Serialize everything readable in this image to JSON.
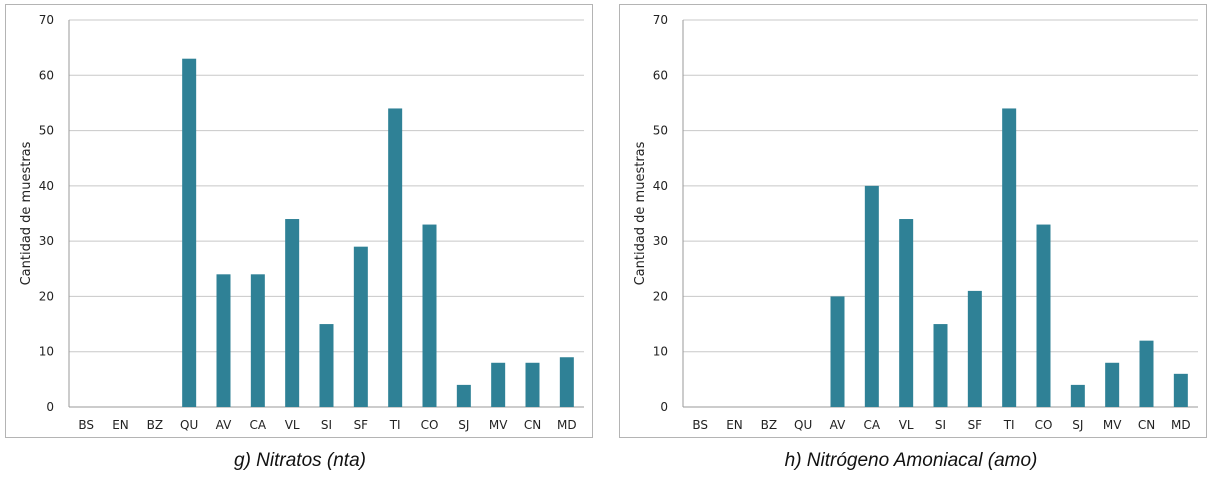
{
  "chart_data": [
    {
      "type": "bar",
      "title": "",
      "xlabel": "",
      "ylabel": "Cantidad de muestras",
      "ylim": [
        0,
        70
      ],
      "yticks": [
        0,
        10,
        20,
        30,
        40,
        50,
        60,
        70
      ],
      "grid": true,
      "categories": [
        "BS",
        "EN",
        "BZ",
        "QU",
        "AV",
        "CA",
        "VL",
        "SI",
        "SF",
        "TI",
        "CO",
        "SJ",
        "MV",
        "CN",
        "MD"
      ],
      "values": [
        0,
        0,
        0,
        63,
        24,
        24,
        34,
        15,
        29,
        54,
        33,
        4,
        8,
        8,
        9
      ],
      "color": "#2f8196"
    },
    {
      "type": "bar",
      "title": "",
      "xlabel": "",
      "ylabel": "Cantidad de muestras",
      "ylim": [
        0,
        70
      ],
      "yticks": [
        0,
        10,
        20,
        30,
        40,
        50,
        60,
        70
      ],
      "grid": true,
      "categories": [
        "BS",
        "EN",
        "BZ",
        "QU",
        "AV",
        "CA",
        "VL",
        "SI",
        "SF",
        "TI",
        "CO",
        "SJ",
        "MV",
        "CN",
        "MD"
      ],
      "values": [
        0,
        0,
        0,
        0,
        20,
        40,
        34,
        15,
        21,
        54,
        33,
        4,
        8,
        12,
        6
      ],
      "color": "#2f8196"
    }
  ],
  "captions": [
    "g) Nitratos (nta)",
    "h) Nitrógeno Amoniacal (amo)"
  ]
}
